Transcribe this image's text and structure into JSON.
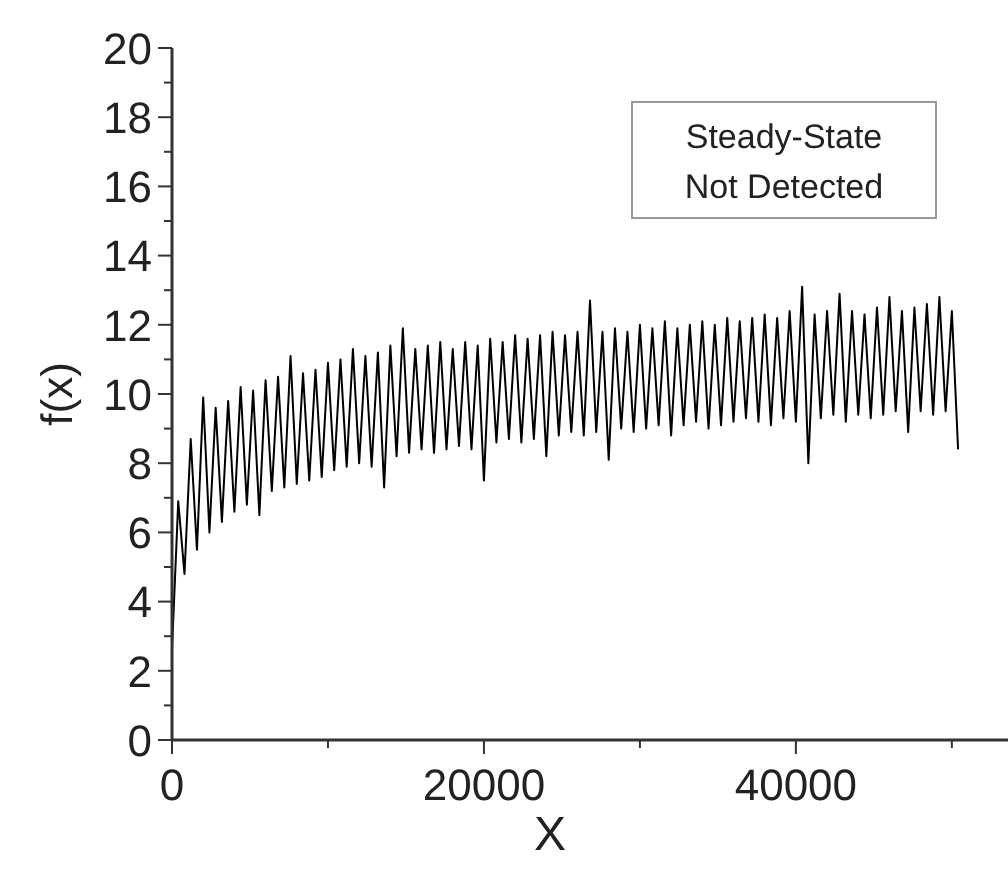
{
  "chart_data": {
    "type": "line",
    "xlabel": "X",
    "ylabel": "f(x)",
    "annotations": [
      "Steady-State\nNot Detected"
    ],
    "xlim": [
      0,
      53600
    ],
    "xticks": [
      0,
      {
        "value": 10000,
        "label": null
      },
      20000,
      {
        "value": 30000,
        "label": null
      },
      40000,
      {
        "value": 50000,
        "label": null
      }
    ],
    "ylim": [
      0,
      20
    ],
    "yticks": [
      0,
      {
        "value": 1,
        "label": null
      },
      2,
      {
        "value": 3,
        "label": null
      },
      4,
      {
        "value": 5,
        "label": null
      },
      6,
      {
        "value": 7,
        "label": null
      },
      8,
      {
        "value": 9,
        "label": null
      },
      10,
      {
        "value": 11,
        "label": null
      },
      12,
      {
        "value": 13,
        "label": null
      },
      14,
      {
        "value": 15,
        "label": null
      },
      16,
      {
        "value": 17,
        "label": null
      },
      18,
      {
        "value": 19,
        "label": null
      },
      20
    ],
    "grid": false,
    "marker": "none",
    "line_style": "solid",
    "x": [
      0,
      400,
      800,
      1200,
      1600,
      2000,
      2400,
      2800,
      3200,
      3600,
      4000,
      4400,
      4800,
      5200,
      5600,
      6000,
      6400,
      6800,
      7200,
      7600,
      8000,
      8400,
      8800,
      9200,
      9600,
      10000,
      10400,
      10800,
      11200,
      11600,
      12000,
      12400,
      12800,
      13200,
      13600,
      14000,
      14400,
      14800,
      15200,
      15600,
      16000,
      16400,
      16800,
      17200,
      17600,
      18000,
      18400,
      18800,
      19200,
      19600,
      20000,
      20400,
      20800,
      21200,
      21600,
      22000,
      22400,
      22800,
      23200,
      23600,
      24000,
      24400,
      24800,
      25200,
      25600,
      26000,
      26400,
      26800,
      27200,
      27600,
      28000,
      28400,
      28800,
      29200,
      29600,
      30000,
      30400,
      30800,
      31200,
      31600,
      32000,
      32400,
      32800,
      33200,
      33600,
      34000,
      34400,
      34800,
      35200,
      35600,
      36000,
      36400,
      36800,
      37200,
      37600,
      38000,
      38400,
      38800,
      39200,
      39600,
      40000,
      40400,
      40800,
      41200,
      41600,
      42000,
      42400,
      42800,
      43200,
      43600,
      44000,
      44400,
      44800,
      45200,
      45600,
      46000,
      46400,
      46800,
      47200,
      47600,
      48000,
      48400,
      48800,
      49200,
      49600,
      50000,
      50400
    ],
    "series": [
      {
        "color": "#000000",
        "values": [
          2.6,
          6.9,
          4.8,
          8.7,
          5.5,
          9.9,
          6.0,
          9.6,
          6.3,
          9.8,
          6.6,
          10.2,
          6.8,
          10.1,
          6.5,
          10.4,
          7.2,
          10.5,
          7.3,
          11.1,
          7.4,
          10.6,
          7.5,
          10.7,
          7.6,
          10.9,
          7.8,
          11.0,
          7.9,
          11.3,
          8.0,
          11.1,
          7.9,
          11.2,
          7.3,
          11.4,
          8.2,
          11.9,
          8.3,
          11.3,
          8.4,
          11.4,
          8.3,
          11.5,
          8.4,
          11.3,
          8.5,
          11.5,
          8.4,
          11.4,
          7.5,
          11.6,
          8.6,
          11.5,
          8.7,
          11.7,
          8.6,
          11.6,
          8.7,
          11.7,
          8.2,
          11.8,
          8.8,
          11.7,
          8.9,
          11.8,
          8.8,
          12.7,
          8.9,
          11.8,
          8.1,
          11.9,
          9.0,
          11.8,
          8.9,
          12.0,
          9.0,
          11.9,
          9.1,
          12.1,
          8.8,
          11.9,
          9.1,
          12.0,
          9.2,
          12.1,
          9.0,
          12.0,
          9.1,
          12.2,
          9.2,
          12.1,
          9.3,
          12.2,
          9.2,
          12.3,
          9.1,
          12.2,
          9.3,
          12.4,
          9.2,
          13.1,
          8.0,
          12.3,
          9.3,
          12.4,
          9.4,
          12.9,
          9.2,
          12.4,
          9.4,
          12.3,
          9.3,
          12.5,
          9.4,
          12.8,
          9.5,
          12.4,
          8.9,
          12.5,
          9.5,
          12.6,
          9.4,
          12.8,
          9.5,
          12.4,
          8.4
        ]
      }
    ]
  }
}
